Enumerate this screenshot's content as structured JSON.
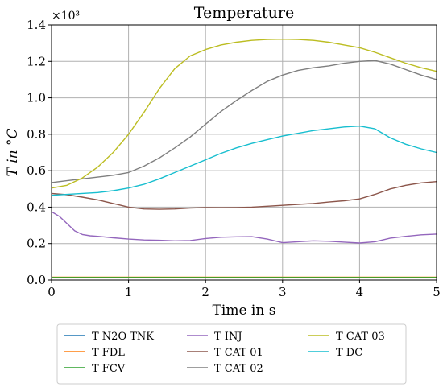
{
  "chart_data": {
    "type": "line",
    "title": "Temperature",
    "xlabel": "Time in s",
    "ylabel": "T in °C",
    "y_multiplier": "×10³",
    "xlim": [
      0,
      5
    ],
    "ylim": [
      0,
      1.4
    ],
    "x_ticks": [
      "0",
      "1",
      "2",
      "3",
      "4",
      "5"
    ],
    "y_ticks": [
      "0.0",
      "0.2",
      "0.4",
      "0.6",
      "0.8",
      "1.0",
      "1.2",
      "1.4"
    ],
    "x_tick_values": [
      0,
      1,
      2,
      3,
      4,
      5
    ],
    "y_tick_values": [
      0,
      0.2,
      0.4,
      0.6,
      0.8,
      1.0,
      1.2,
      1.4
    ],
    "grid": true,
    "legend_placement": "bottom",
    "series": [
      {
        "name": "T N2O TNK",
        "color": "#1f77b4",
        "x": [
          0,
          1,
          2,
          3,
          4,
          5
        ],
        "y": [
          0.012,
          0.012,
          0.012,
          0.012,
          0.012,
          0.012
        ]
      },
      {
        "name": "T FDL",
        "color": "#ff7f0e",
        "x": [
          0,
          1,
          2,
          3,
          4,
          5
        ],
        "y": [
          0.016,
          0.016,
          0.016,
          0.016,
          0.016,
          0.016
        ]
      },
      {
        "name": "T FCV",
        "color": "#2ca02c",
        "x": [
          0,
          1,
          2,
          3,
          4,
          5
        ],
        "y": [
          0.014,
          0.014,
          0.014,
          0.014,
          0.014,
          0.014
        ]
      },
      {
        "name": "T INJ",
        "color": "#9467bd",
        "x": [
          0,
          0.1,
          0.2,
          0.3,
          0.4,
          0.5,
          0.6,
          0.8,
          1.0,
          1.2,
          1.4,
          1.6,
          1.8,
          2.0,
          2.2,
          2.4,
          2.6,
          2.8,
          3.0,
          3.2,
          3.4,
          3.6,
          3.8,
          4.0,
          4.2,
          4.4,
          4.6,
          4.8,
          5.0
        ],
        "y": [
          0.375,
          0.35,
          0.31,
          0.27,
          0.25,
          0.243,
          0.24,
          0.232,
          0.225,
          0.22,
          0.218,
          0.215,
          0.217,
          0.228,
          0.235,
          0.237,
          0.238,
          0.225,
          0.205,
          0.21,
          0.215,
          0.213,
          0.208,
          0.203,
          0.21,
          0.23,
          0.24,
          0.248,
          0.252
        ]
      },
      {
        "name": "T CAT 01",
        "color": "#8c564b",
        "x": [
          0,
          0.2,
          0.4,
          0.6,
          0.8,
          1.0,
          1.2,
          1.4,
          1.6,
          1.8,
          2.0,
          2.2,
          2.4,
          2.6,
          2.8,
          3.0,
          3.2,
          3.4,
          3.6,
          3.8,
          4.0,
          4.2,
          4.4,
          4.6,
          4.8,
          5.0
        ],
        "y": [
          0.475,
          0.468,
          0.455,
          0.44,
          0.42,
          0.4,
          0.39,
          0.388,
          0.39,
          0.395,
          0.398,
          0.397,
          0.398,
          0.4,
          0.405,
          0.41,
          0.415,
          0.42,
          0.428,
          0.435,
          0.445,
          0.47,
          0.5,
          0.52,
          0.533,
          0.54
        ]
      },
      {
        "name": "T CAT 02",
        "color": "#7f7f7f",
        "x": [
          0,
          0.2,
          0.4,
          0.6,
          0.8,
          1.0,
          1.2,
          1.4,
          1.6,
          1.8,
          2.0,
          2.2,
          2.4,
          2.6,
          2.8,
          3.0,
          3.2,
          3.4,
          3.6,
          3.8,
          4.0,
          4.2,
          4.4,
          4.6,
          4.8,
          5.0
        ],
        "y": [
          0.535,
          0.545,
          0.555,
          0.565,
          0.575,
          0.59,
          0.625,
          0.67,
          0.725,
          0.785,
          0.855,
          0.925,
          0.985,
          1.04,
          1.09,
          1.125,
          1.15,
          1.165,
          1.175,
          1.19,
          1.2,
          1.205,
          1.185,
          1.155,
          1.125,
          1.1
        ]
      },
      {
        "name": "T CAT 03",
        "color": "#bcbd22",
        "x": [
          0,
          0.2,
          0.4,
          0.6,
          0.8,
          1.0,
          1.2,
          1.4,
          1.6,
          1.8,
          2.0,
          2.2,
          2.4,
          2.6,
          2.8,
          3.0,
          3.2,
          3.4,
          3.6,
          3.8,
          4.0,
          4.2,
          4.4,
          4.6,
          4.8,
          5.0
        ],
        "y": [
          0.505,
          0.52,
          0.56,
          0.62,
          0.7,
          0.8,
          0.92,
          1.05,
          1.16,
          1.23,
          1.265,
          1.29,
          1.305,
          1.315,
          1.32,
          1.322,
          1.32,
          1.315,
          1.305,
          1.29,
          1.275,
          1.25,
          1.22,
          1.19,
          1.165,
          1.145
        ]
      },
      {
        "name": "T DC",
        "color": "#17becf",
        "x": [
          0,
          0.2,
          0.4,
          0.6,
          0.8,
          1.0,
          1.2,
          1.4,
          1.6,
          1.8,
          2.0,
          2.2,
          2.4,
          2.6,
          2.8,
          3.0,
          3.2,
          3.4,
          3.6,
          3.8,
          4.0,
          4.2,
          4.4,
          4.6,
          4.8,
          5.0
        ],
        "y": [
          0.465,
          0.47,
          0.475,
          0.48,
          0.49,
          0.505,
          0.525,
          0.555,
          0.59,
          0.625,
          0.66,
          0.695,
          0.725,
          0.75,
          0.77,
          0.79,
          0.805,
          0.82,
          0.83,
          0.84,
          0.845,
          0.83,
          0.78,
          0.745,
          0.72,
          0.7
        ]
      }
    ]
  }
}
